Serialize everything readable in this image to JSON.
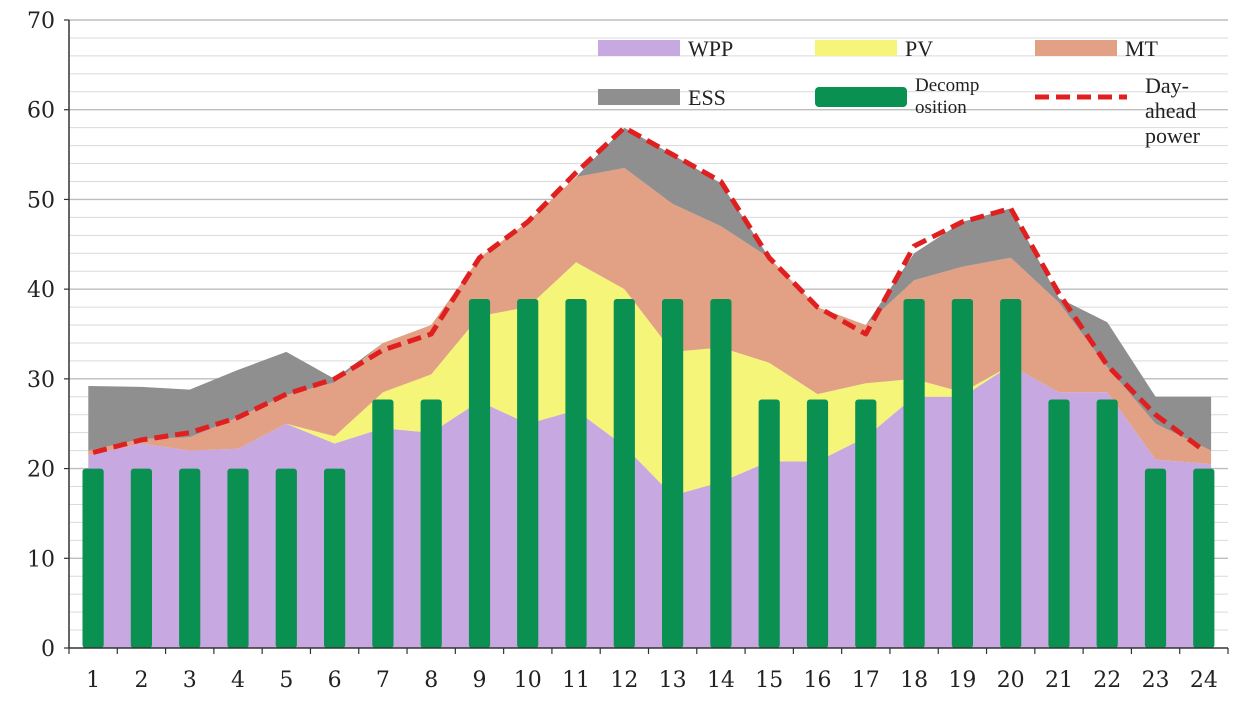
{
  "chart_data": {
    "type": "area",
    "title": "",
    "xlabel": "",
    "ylabel": "",
    "ylim": [
      0,
      70
    ],
    "yticks": [
      0,
      10,
      20,
      30,
      40,
      50,
      60,
      70
    ],
    "categories": [
      "1",
      "2",
      "3",
      "4",
      "5",
      "6",
      "7",
      "8",
      "9",
      "10",
      "11",
      "12",
      "13",
      "14",
      "15",
      "16",
      "17",
      "18",
      "19",
      "20",
      "21",
      "22",
      "23",
      "24"
    ],
    "grid": true,
    "series": [
      {
        "name": "WPP",
        "kind": "stacked-area",
        "color": "#c8a8e0",
        "values": [
          21.5,
          22.8,
          22.0,
          22.2,
          25.0,
          22.8,
          24.5,
          24.0,
          27.5,
          25.0,
          26.5,
          22.5,
          17.0,
          18.5,
          20.8,
          20.8,
          23.5,
          28.0,
          28.0,
          31.5,
          28.5,
          28.5,
          21.0,
          20.5
        ]
      },
      {
        "name": "PV",
        "kind": "stacked-area",
        "color": "#f5f57a",
        "values": [
          0,
          0,
          0,
          0,
          0,
          0.8,
          4.0,
          6.5,
          9.5,
          13.0,
          16.5,
          17.5,
          16.0,
          15.0,
          11.0,
          7.5,
          6.0,
          2.0,
          0.5,
          0,
          0,
          0,
          0,
          0
        ]
      },
      {
        "name": "MT",
        "kind": "stacked-area",
        "color": "#e2a084",
        "values": [
          0.5,
          0.5,
          1.5,
          3.5,
          3.2,
          6.0,
          5.5,
          5.5,
          6.5,
          9.5,
          9.5,
          13.5,
          16.5,
          13.5,
          11.7,
          9.7,
          6.5,
          11.0,
          14.0,
          12.0,
          10.0,
          2.8,
          4.0,
          1.5
        ]
      },
      {
        "name": "ESS",
        "kind": "stacked-area",
        "color": "#8f8f8f",
        "values": [
          7.2,
          5.8,
          5.3,
          5.3,
          4.8,
          0.4,
          0,
          0,
          0,
          0,
          0,
          4.5,
          5.5,
          4.8,
          0,
          0,
          0,
          3.0,
          5.0,
          5.5,
          0.5,
          5.0,
          3.0,
          6.0
        ]
      },
      {
        "name": "Decomposition",
        "kind": "bar",
        "color": "#0a9152",
        "values": [
          20,
          20,
          20,
          20,
          20,
          20,
          27.7,
          27.7,
          38.9,
          38.9,
          38.9,
          38.9,
          38.9,
          38.9,
          27.7,
          27.7,
          27.7,
          38.9,
          38.9,
          38.9,
          27.7,
          27.7,
          20,
          20
        ]
      },
      {
        "name": "Day-ahead power",
        "kind": "dashed-line",
        "color": "#e02020",
        "values": [
          21.8,
          23.2,
          24.0,
          25.7,
          28.3,
          30.0,
          33.2,
          35.0,
          43.5,
          47.5,
          53.0,
          58.0,
          55.0,
          52.0,
          43.5,
          38.0,
          35.0,
          44.8,
          47.5,
          49.0,
          39.5,
          31.5,
          26.0,
          22.0
        ]
      }
    ],
    "legend": [
      {
        "label": "WPP",
        "series": "WPP",
        "style": "swatch"
      },
      {
        "label": "PV",
        "series": "PV",
        "style": "swatch"
      },
      {
        "label": "MT",
        "series": "MT",
        "style": "swatch"
      },
      {
        "label": "ESS",
        "series": "ESS",
        "style": "swatch"
      },
      {
        "label_lines": [
          "Decomp",
          "osition"
        ],
        "series": "Decomposition",
        "style": "swatch"
      },
      {
        "label_lines": [
          "Day-",
          "ahead",
          "power"
        ],
        "series": "Day-ahead power",
        "style": "dash"
      }
    ],
    "legend_position": "top-right"
  }
}
